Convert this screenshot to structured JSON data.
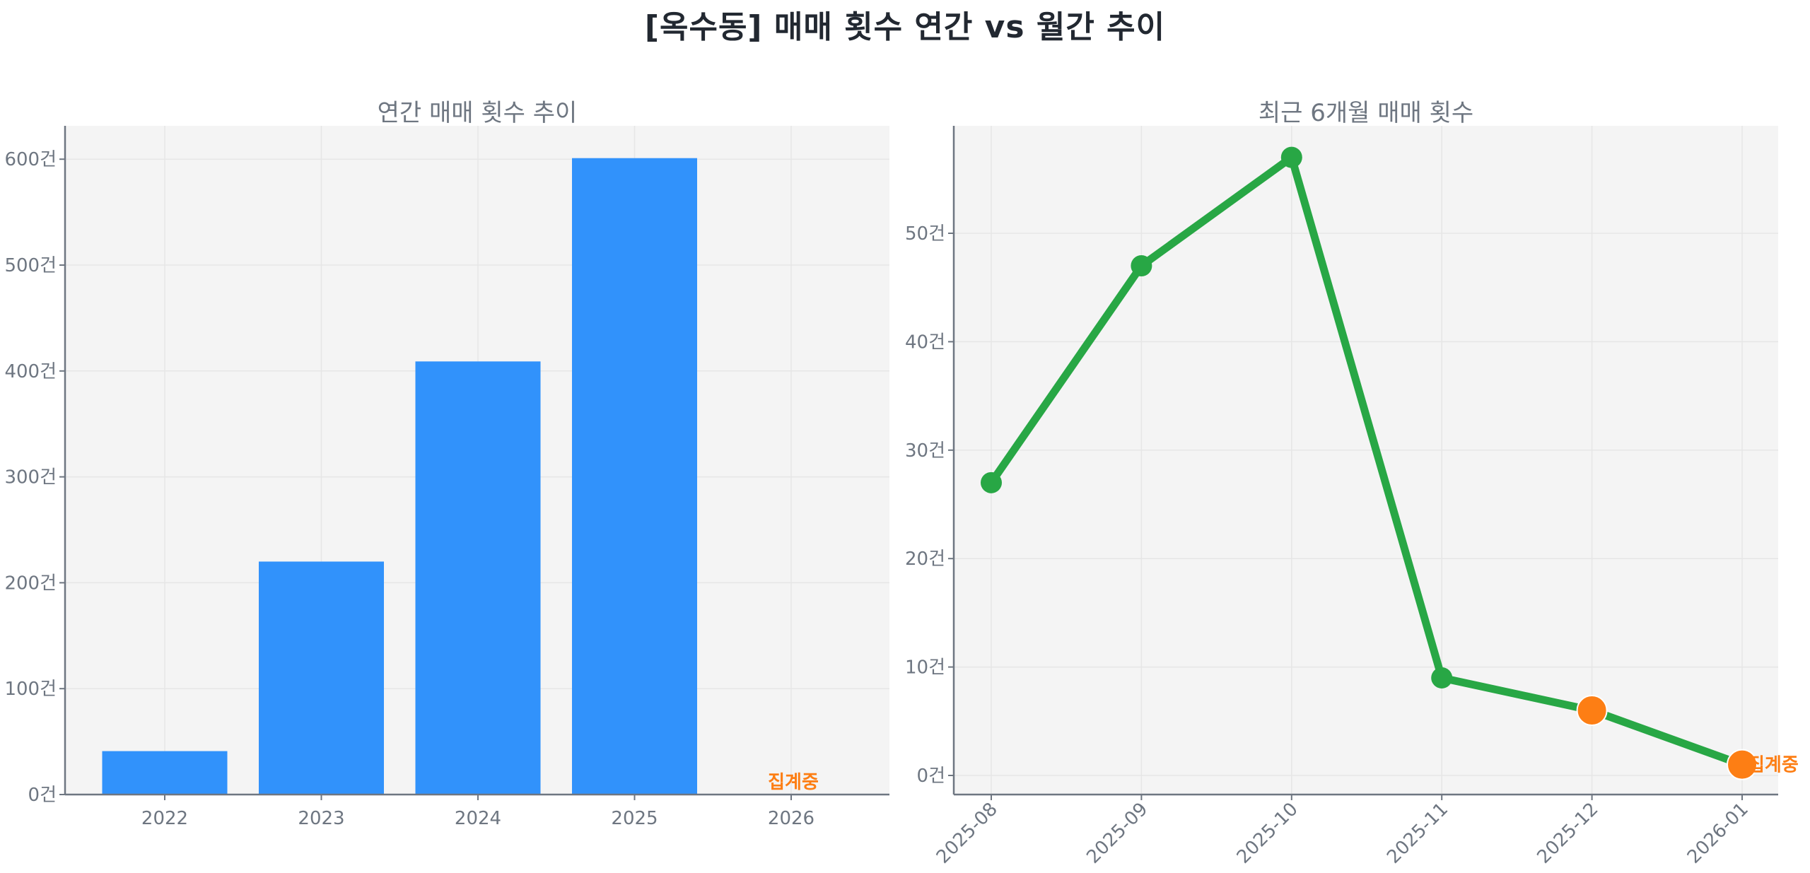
{
  "figure": {
    "title": "[옥수동] 매매 횟수 연간 vs 월간 추이"
  },
  "colors": {
    "bar": "#3192fb",
    "line": "#28a745",
    "highlight": "#fd7e14",
    "axis": "#6e7681",
    "grid": "#e6e6e6",
    "plot_bg": "#f4f4f4",
    "title": "#222831"
  },
  "chart_data": [
    {
      "type": "bar",
      "title": "연간 매매 횟수 추이",
      "xlabel": "",
      "ylabel": "",
      "categories": [
        "2022",
        "2023",
        "2024",
        "2025",
        "2026"
      ],
      "values": [
        41,
        220,
        409,
        601,
        0
      ],
      "ylim": [
        0,
        630
      ],
      "yticks": [
        0,
        100,
        200,
        300,
        400,
        500,
        600
      ],
      "ytick_labels": [
        "0건",
        "100건",
        "200건",
        "300건",
        "400건",
        "500건",
        "600건"
      ],
      "grid": true,
      "annotations": [
        {
          "x": "2026",
          "text": "집계중",
          "color": "#fd7e14"
        }
      ]
    },
    {
      "type": "line",
      "title": "최근 6개월 매매 횟수",
      "xlabel": "",
      "ylabel": "",
      "categories": [
        "2025-08",
        "2025-09",
        "2025-10",
        "2025-11",
        "2025-12",
        "2026-01"
      ],
      "values": [
        27,
        47,
        57,
        9,
        6,
        1
      ],
      "highlighted_points": [
        "2025-12",
        "2026-01"
      ],
      "ylim": [
        -1.8,
        59.8
      ],
      "yticks": [
        0,
        10,
        20,
        30,
        40,
        50
      ],
      "ytick_labels": [
        "0건",
        "10건",
        "20건",
        "30건",
        "40건",
        "50건"
      ],
      "xtick_rotation": 45,
      "grid": true,
      "annotations": [
        {
          "x": "2026-01",
          "text": "집계중",
          "color": "#fd7e14"
        }
      ]
    }
  ]
}
